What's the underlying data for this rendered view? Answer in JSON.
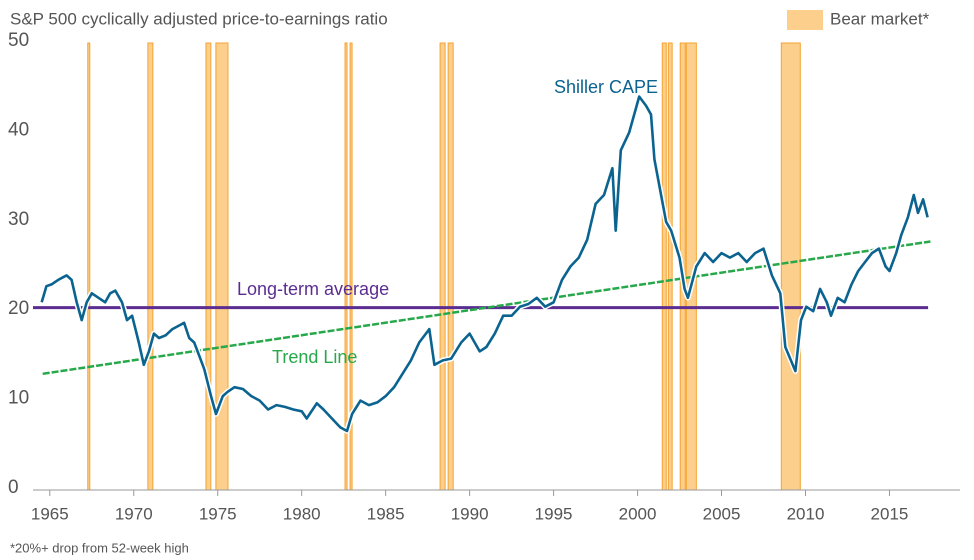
{
  "chart_data": {
    "type": "line",
    "title": "S&P 500 cyclically adjusted price-to-earnings ratio",
    "footnote": "*20%+ drop from 52-week high",
    "xlim": [
      1964,
      2019.2
    ],
    "xticks": [
      1965,
      1970,
      1975,
      1980,
      1985,
      1990,
      1995,
      2000,
      2005,
      2010,
      2015
    ],
    "ylim": [
      0,
      50
    ],
    "yticks": [
      0,
      10,
      20,
      30,
      40,
      50
    ],
    "grid": false,
    "shaded_regions": {
      "name": "Bear market*",
      "color": "#fccf8d",
      "edge_color": "#f5a330",
      "ranges": [
        [
          1967.26,
          1967.38
        ],
        [
          1970.84,
          1971.14
        ],
        [
          1974.3,
          1974.59
        ],
        [
          1974.89,
          1975.61
        ],
        [
          1982.58,
          1982.7
        ],
        [
          1982.88,
          1983.0
        ],
        [
          1988.24,
          1988.54
        ],
        [
          1988.72,
          1989.02
        ],
        [
          2001.47,
          2001.71
        ],
        [
          2001.83,
          2002.06
        ],
        [
          2002.54,
          2002.84
        ],
        [
          2002.9,
          2003.5
        ],
        [
          2008.56,
          2009.69
        ]
      ]
    },
    "series": [
      {
        "name": "Long-term average",
        "color": "#5c2d91",
        "x": [
          1964,
          2017.3
        ],
        "values": [
          20.4,
          20.4
        ]
      },
      {
        "name": "Trend Line",
        "color": "#27a84a",
        "x": [
          1964.58,
          2017.44
        ],
        "values": [
          13.0,
          27.8
        ]
      },
      {
        "name": "Shiller CAPE",
        "color": "#0b6390",
        "x": [
          1964.52,
          1964.8,
          1965.1,
          1965.5,
          1965.8,
          1966.0,
          1966.3,
          1966.6,
          1966.9,
          1967.2,
          1967.5,
          1967.9,
          1968.3,
          1968.6,
          1968.9,
          1969.3,
          1969.6,
          1969.9,
          1970.3,
          1970.6,
          1970.9,
          1971.2,
          1971.5,
          1971.9,
          1972.3,
          1972.8,
          1973.0,
          1973.3,
          1973.6,
          1973.9,
          1974.2,
          1974.6,
          1974.9,
          1975.3,
          1975.6,
          1976.0,
          1976.5,
          1977.0,
          1977.5,
          1978.0,
          1978.5,
          1979.0,
          1979.5,
          1980.0,
          1980.3,
          1980.9,
          1981.3,
          1981.8,
          1982.3,
          1982.7,
          1983.0,
          1983.5,
          1984.0,
          1984.5,
          1985.0,
          1985.5,
          1986.0,
          1986.5,
          1987.0,
          1987.6,
          1987.9,
          1988.4,
          1988.9,
          1989.5,
          1990.0,
          1990.6,
          1991.0,
          1991.5,
          1992.0,
          1992.5,
          1993.0,
          1993.5,
          1994.0,
          1994.5,
          1995.0,
          1995.5,
          1996.0,
          1996.5,
          1997.0,
          1997.5,
          1998.0,
          1998.5,
          1998.7,
          1999.0,
          1999.5,
          2000.1,
          2000.5,
          2000.8,
          2001.0,
          2001.3,
          2001.7,
          2002.0,
          2002.5,
          2002.8,
          2003.0,
          2003.5,
          2004.0,
          2004.5,
          2005.0,
          2005.5,
          2006.0,
          2006.5,
          2007.0,
          2007.5,
          2008.0,
          2008.5,
          2008.8,
          2009.4,
          2009.73,
          2010.05,
          2010.46,
          2010.87,
          2011.27,
          2011.52,
          2011.92,
          2012.33,
          2012.74,
          2013.14,
          2013.55,
          2013.96,
          2014.37,
          2014.77,
          2015.0,
          2015.4,
          2015.7,
          2016.1,
          2016.45,
          2016.7,
          2017.0,
          2017.27
        ],
        "values": [
          21,
          22.8,
          23,
          23.5,
          23.8,
          24,
          23.5,
          21,
          19,
          21,
          22,
          21.5,
          21,
          22,
          22.3,
          21,
          19,
          19.5,
          16.5,
          14,
          15.5,
          17.5,
          17,
          17.3,
          18,
          18.5,
          18.7,
          17,
          16.5,
          15,
          13.5,
          10.5,
          8.5,
          10.5,
          11,
          11.5,
          11.3,
          10.5,
          10,
          9,
          9.5,
          9.3,
          9,
          8.8,
          8,
          9.7,
          9,
          8,
          7,
          6.6,
          8.5,
          10,
          9.5,
          9.8,
          10.5,
          11.5,
          13,
          14.5,
          16.5,
          18,
          14,
          14.5,
          14.7,
          16.5,
          17.5,
          15.5,
          16,
          17.5,
          19.5,
          19.5,
          20.5,
          20.8,
          21.5,
          20.5,
          21,
          23.5,
          25,
          26,
          28,
          32,
          33,
          36,
          29,
          38,
          40,
          44,
          43,
          42,
          37,
          34,
          30,
          29,
          26,
          22.5,
          21.5,
          25,
          26.5,
          25.5,
          26.5,
          26,
          26.5,
          25.5,
          26.5,
          27,
          24,
          22,
          16,
          13.3,
          19,
          20.5,
          20,
          22.5,
          21,
          19.5,
          21.5,
          21,
          23,
          24.5,
          25.5,
          26.5,
          27,
          25,
          24.5,
          26.5,
          28.5,
          30.5,
          33,
          31,
          32.5,
          30.5
        ]
      }
    ]
  }
}
